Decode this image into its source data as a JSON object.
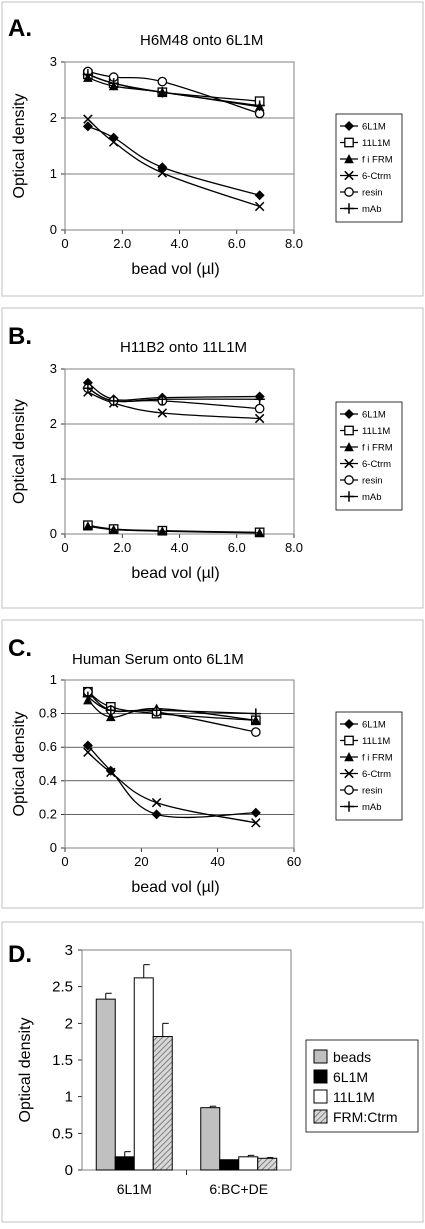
{
  "series_styles": {
    "6L1M": "diamond",
    "11L1M": "open-square",
    "f i FRM": "triangle",
    "6-Ctrm": "cross",
    "resin": "open-circle",
    "mAb": "plus"
  },
  "colors": {
    "line": "#000000",
    "plot_border": "#808080",
    "frame": "#c0c0c0",
    "bar_gray": "#c0c0c0",
    "bar_black": "#000000",
    "bar_white": "#ffffff",
    "bar_hatch": "#a8a8a8"
  },
  "chart_data": [
    {
      "panel": "A.",
      "type": "line",
      "title": "H6M48 onto 6L1M",
      "xlabel": "bead vol (µl)",
      "ylabel": "Optical density",
      "xlim": [
        0,
        8
      ],
      "ylim": [
        0,
        3
      ],
      "xticks": [
        "0",
        "2.0",
        "4.0",
        "6.0",
        "8.0"
      ],
      "yticks": [
        "0",
        "1",
        "2",
        "3"
      ],
      "legend": [
        "6L1M",
        "11L1M",
        "f i FRM",
        "6-Ctrm",
        "resin",
        "mAb"
      ],
      "series": [
        {
          "name": "6L1M",
          "x": [
            0.8,
            1.7,
            3.4,
            6.8
          ],
          "y": [
            1.85,
            1.65,
            1.12,
            0.62
          ]
        },
        {
          "name": "11L1M",
          "x": [
            0.8,
            1.7,
            3.4,
            6.8
          ],
          "y": [
            2.78,
            2.62,
            2.46,
            2.3
          ]
        },
        {
          "name": "f i FRM",
          "x": [
            0.8,
            1.7,
            3.4,
            6.8
          ],
          "y": [
            2.72,
            2.57,
            2.46,
            2.2
          ]
        },
        {
          "name": "6-Ctrm",
          "x": [
            0.8,
            1.7,
            3.4,
            6.8
          ],
          "y": [
            1.98,
            1.57,
            1.02,
            0.42
          ]
        },
        {
          "name": "resin",
          "x": [
            0.8,
            1.7,
            3.4,
            6.8
          ],
          "y": [
            2.83,
            2.73,
            2.65,
            2.08
          ]
        },
        {
          "name": "mAb",
          "x": [
            0.8,
            1.7,
            3.4,
            6.8
          ],
          "y": [
            2.78,
            2.62,
            2.46,
            2.22
          ]
        }
      ]
    },
    {
      "panel": "B.",
      "type": "line",
      "title": "H11B2 onto 11L1M",
      "xlabel": "bead vol (µl)",
      "ylabel": "Optical density",
      "xlim": [
        0,
        8
      ],
      "ylim": [
        0,
        3
      ],
      "xticks": [
        "0",
        "2.0",
        "4.0",
        "6.0",
        "8.0"
      ],
      "yticks": [
        "0",
        "1",
        "2",
        "3"
      ],
      "legend": [
        "6L1M",
        "11L1M",
        "f i FRM",
        "6-Ctrm",
        "resin",
        "mAb"
      ],
      "series": [
        {
          "name": "6L1M",
          "x": [
            0.8,
            1.7,
            3.4,
            6.8
          ],
          "y": [
            2.75,
            2.45,
            2.48,
            2.5
          ]
        },
        {
          "name": "11L1M",
          "x": [
            0.8,
            1.7,
            3.4,
            6.8
          ],
          "y": [
            0.16,
            0.09,
            0.06,
            0.03
          ]
        },
        {
          "name": "f i FRM",
          "x": [
            0.8,
            1.7,
            3.4,
            6.8
          ],
          "y": [
            0.14,
            0.08,
            0.05,
            0.02
          ]
        },
        {
          "name": "6-Ctrm",
          "x": [
            0.8,
            1.7,
            3.4,
            6.8
          ],
          "y": [
            2.58,
            2.38,
            2.2,
            2.1
          ]
        },
        {
          "name": "resin",
          "x": [
            0.8,
            1.7,
            3.4,
            6.8
          ],
          "y": [
            2.65,
            2.42,
            2.42,
            2.28
          ]
        },
        {
          "name": "mAb",
          "x": [
            0.8,
            1.7,
            3.4,
            6.8
          ],
          "y": [
            2.65,
            2.42,
            2.45,
            2.45
          ]
        }
      ]
    },
    {
      "panel": "C.",
      "type": "line",
      "title": "Human Serum onto 6L1M",
      "xlabel": "bead vol (µl)",
      "ylabel": "Optical density",
      "xlim": [
        0,
        60
      ],
      "ylim": [
        0,
        1
      ],
      "xticks": [
        "0",
        "20",
        "40",
        "60"
      ],
      "xtick_values": [
        0,
        20,
        40,
        60
      ],
      "yticks": [
        "0",
        "0.2",
        "0.4",
        "0.6",
        "0.8",
        "1"
      ],
      "legend": [
        "6L1M",
        "11L1M",
        "f i FRM",
        "6-Ctrm",
        "resin",
        "mAb"
      ],
      "series": [
        {
          "name": "6L1M",
          "x": [
            6,
            12,
            24,
            50
          ],
          "y": [
            0.61,
            0.46,
            0.2,
            0.21
          ]
        },
        {
          "name": "11L1M",
          "x": [
            6,
            12,
            24,
            50
          ],
          "y": [
            0.93,
            0.84,
            0.8,
            0.76
          ]
        },
        {
          "name": "f i FRM",
          "x": [
            6,
            12,
            24,
            50
          ],
          "y": [
            0.88,
            0.78,
            0.83,
            0.76
          ]
        },
        {
          "name": "6-Ctrm",
          "x": [
            6,
            12,
            24,
            50
          ],
          "y": [
            0.57,
            0.45,
            0.27,
            0.15
          ]
        },
        {
          "name": "resin",
          "x": [
            6,
            12,
            24,
            50
          ],
          "y": [
            0.93,
            0.82,
            0.81,
            0.69
          ]
        },
        {
          "name": "mAb",
          "x": [
            6,
            12,
            24,
            50
          ],
          "y": [
            0.9,
            0.82,
            0.82,
            0.8
          ]
        }
      ]
    },
    {
      "panel": "D.",
      "type": "bar",
      "ylabel": "Optical density",
      "ylim": [
        0,
        3
      ],
      "yticks": [
        "0",
        "0.5",
        "1",
        "1.5",
        "2",
        "2.5",
        "3"
      ],
      "categories": [
        "6L1M",
        "6:BC+DE"
      ],
      "legend": [
        "beads",
        "6L1M",
        "11L1M",
        "FRM:Ctrm"
      ],
      "series": [
        {
          "name": "beads",
          "values": [
            2.33,
            0.85
          ],
          "errors": [
            0.08,
            0.02
          ]
        },
        {
          "name": "6L1M",
          "values": [
            0.18,
            0.14
          ],
          "errors": [
            0.07,
            0.0
          ]
        },
        {
          "name": "11L1M",
          "values": [
            2.62,
            0.18
          ],
          "errors": [
            0.18,
            0.02
          ]
        },
        {
          "name": "FRM:Ctrm",
          "values": [
            1.82,
            0.16
          ],
          "errors": [
            0.18,
            0.01
          ]
        }
      ]
    }
  ]
}
